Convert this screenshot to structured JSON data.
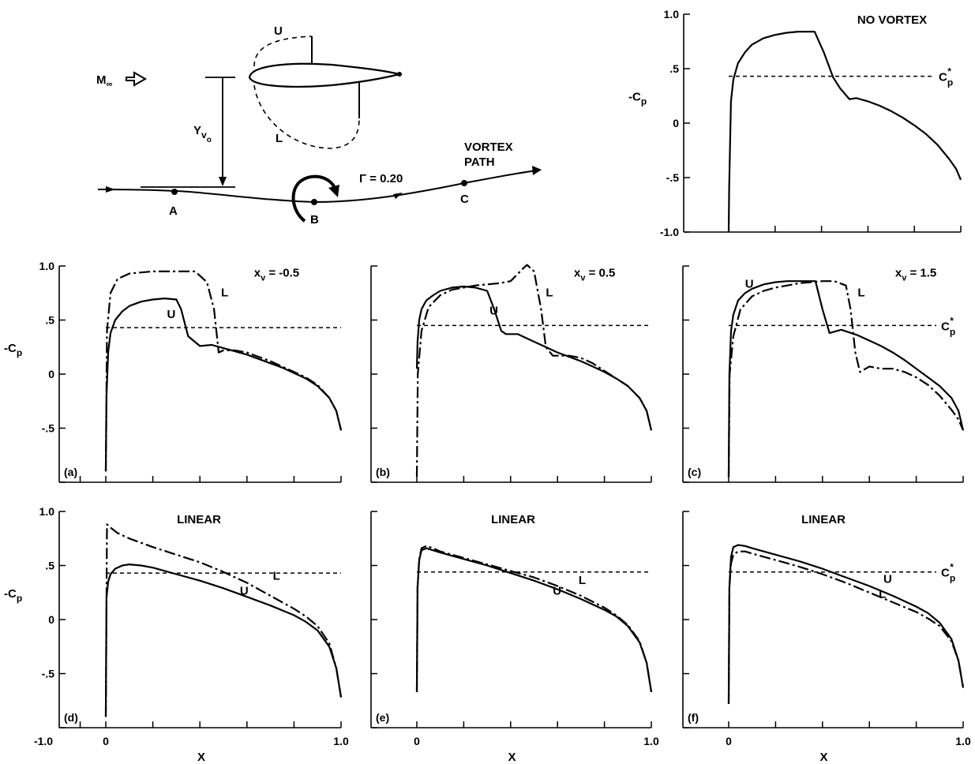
{
  "y_ticks": [
    "1.0",
    ".5",
    "0",
    "-.5",
    "-1.0"
  ],
  "x_tick_left": "-1.0",
  "x_tick_zero": "0",
  "x_tick_one": "1.0",
  "x_axis_label": "X",
  "y_axis_label_main": "-C",
  "y_axis_label_sub": "p",
  "cp_star_main": "C",
  "cp_star_sub": "p",
  "cp_star_sup": "*",
  "schematic": {
    "mach_main": "M",
    "mach_sub": "∞",
    "upper_label": "U",
    "lower_label": "L",
    "yvo_main": "Y",
    "yvo_sub": "v",
    "yvo_subsub": "o",
    "gamma_label": "Γ = 0.20",
    "vortex_path_line1": "VORTEX",
    "vortex_path_line2": "PATH",
    "point_a": "A",
    "point_b": "B",
    "point_c": "C"
  },
  "chart_data": [
    {
      "type": "line",
      "id": "no-vortex",
      "title": "NO VORTEX",
      "ylim": [
        -1.0,
        1.0
      ],
      "xlim": [
        0,
        1
      ],
      "cp_star": 0.43,
      "series": [
        {
          "name": "",
          "style": "solid",
          "x": [
            0,
            0.002,
            0.01,
            0.02,
            0.04,
            0.07,
            0.1,
            0.15,
            0.2,
            0.25,
            0.3,
            0.35,
            0.37,
            0.41,
            0.45,
            0.48,
            0.52,
            0.55,
            0.6,
            0.65,
            0.7,
            0.75,
            0.8,
            0.85,
            0.9,
            0.95,
            0.98,
            1.0
          ],
          "y": [
            -1.0,
            -0.6,
            0.2,
            0.4,
            0.55,
            0.65,
            0.72,
            0.78,
            0.81,
            0.83,
            0.84,
            0.84,
            0.84,
            0.65,
            0.42,
            0.32,
            0.22,
            0.23,
            0.2,
            0.16,
            0.11,
            0.05,
            -0.02,
            -0.1,
            -0.2,
            -0.33,
            -0.42,
            -0.52
          ]
        }
      ]
    },
    {
      "type": "line",
      "id": "a",
      "panel_label": "(a)",
      "title": "",
      "annotation_main": "x",
      "annotation_sub": "v",
      "annotation_value": " = -0.5",
      "curve_labels": {
        "upper": "U",
        "lower": "L"
      },
      "ylim": [
        -1.0,
        1.0
      ],
      "xlim": [
        -1.0,
        1.0
      ],
      "cp_star": 0.43,
      "series": [
        {
          "name": "U",
          "style": "solid",
          "x": [
            0,
            0.003,
            0.01,
            0.02,
            0.04,
            0.07,
            0.1,
            0.15,
            0.2,
            0.25,
            0.3,
            0.32,
            0.35,
            0.4,
            0.45,
            0.5,
            0.55,
            0.6,
            0.65,
            0.7,
            0.75,
            0.8,
            0.85,
            0.9,
            0.95,
            0.98,
            1.0
          ],
          "y": [
            -0.9,
            -0.2,
            0.2,
            0.38,
            0.5,
            0.58,
            0.63,
            0.67,
            0.69,
            0.7,
            0.69,
            0.6,
            0.35,
            0.26,
            0.27,
            0.24,
            0.21,
            0.18,
            0.14,
            0.1,
            0.06,
            0.01,
            -0.04,
            -0.11,
            -0.22,
            -0.34,
            -0.52
          ]
        },
        {
          "name": "L",
          "style": "dashdot",
          "x": [
            0,
            0.005,
            0.02,
            0.05,
            0.1,
            0.15,
            0.2,
            0.25,
            0.3,
            0.38,
            0.43,
            0.46,
            0.48,
            0.5,
            0.55,
            0.6,
            0.65,
            0.7,
            0.75,
            0.8,
            0.85,
            0.9,
            0.95,
            0.98,
            1.0
          ],
          "y": [
            -0.9,
            0.4,
            0.75,
            0.88,
            0.93,
            0.94,
            0.95,
            0.95,
            0.95,
            0.95,
            0.85,
            0.6,
            0.2,
            0.22,
            0.22,
            0.2,
            0.16,
            0.12,
            0.07,
            0.02,
            -0.03,
            -0.1,
            -0.22,
            -0.34,
            -0.52
          ]
        }
      ]
    },
    {
      "type": "line",
      "id": "b",
      "panel_label": "(b)",
      "title": "",
      "annotation_main": "x",
      "annotation_sub": "v",
      "annotation_value": " = 0.5",
      "curve_labels": {
        "upper": "U",
        "lower": "L"
      },
      "ylim": [
        -1.0,
        1.0
      ],
      "xlim": [
        0,
        1
      ],
      "cp_star": 0.45,
      "series": [
        {
          "name": "U",
          "style": "solid",
          "x": [
            0,
            0.003,
            0.01,
            0.02,
            0.04,
            0.07,
            0.1,
            0.15,
            0.2,
            0.25,
            0.3,
            0.33,
            0.36,
            0.38,
            0.43,
            0.48,
            0.55,
            0.6,
            0.65,
            0.7,
            0.75,
            0.8,
            0.85,
            0.9,
            0.95,
            0.98,
            1.0
          ],
          "y": [
            0.05,
            0.3,
            0.5,
            0.6,
            0.68,
            0.73,
            0.77,
            0.8,
            0.81,
            0.8,
            0.77,
            0.6,
            0.4,
            0.37,
            0.37,
            0.32,
            0.25,
            0.2,
            0.16,
            0.12,
            0.07,
            0.02,
            -0.04,
            -0.11,
            -0.22,
            -0.34,
            -0.52
          ]
        },
        {
          "name": "L",
          "style": "dashdot",
          "x": [
            0,
            0.004,
            0.02,
            0.05,
            0.1,
            0.15,
            0.2,
            0.25,
            0.3,
            0.35,
            0.4,
            0.45,
            0.47,
            0.5,
            0.53,
            0.55,
            0.58,
            0.62,
            0.65,
            0.7,
            0.75,
            0.8,
            0.85,
            0.9,
            0.95,
            0.98,
            1.0
          ],
          "y": [
            -0.95,
            0.0,
            0.4,
            0.62,
            0.73,
            0.78,
            0.8,
            0.82,
            0.83,
            0.84,
            0.86,
            0.97,
            1.01,
            0.95,
            0.6,
            0.25,
            0.17,
            0.17,
            0.17,
            0.15,
            0.1,
            0.03,
            -0.04,
            -0.11,
            -0.22,
            -0.34,
            -0.52
          ]
        }
      ]
    },
    {
      "type": "line",
      "id": "c",
      "panel_label": "(c)",
      "title": "",
      "annotation_main": "x",
      "annotation_sub": "v",
      "annotation_value": " = 1.5",
      "curve_labels": {
        "upper": "U",
        "lower": "L"
      },
      "ylim": [
        -1.0,
        1.0
      ],
      "xlim": [
        0,
        1
      ],
      "cp_star": 0.45,
      "series": [
        {
          "name": "U",
          "style": "solid",
          "x": [
            0,
            0.003,
            0.01,
            0.02,
            0.04,
            0.07,
            0.1,
            0.15,
            0.2,
            0.25,
            0.3,
            0.35,
            0.37,
            0.4,
            0.43,
            0.48,
            0.55,
            0.6,
            0.65,
            0.7,
            0.75,
            0.8,
            0.85,
            0.9,
            0.95,
            0.98,
            1.0
          ],
          "y": [
            -0.95,
            0.0,
            0.4,
            0.55,
            0.68,
            0.75,
            0.79,
            0.83,
            0.85,
            0.86,
            0.86,
            0.86,
            0.86,
            0.6,
            0.38,
            0.41,
            0.36,
            0.31,
            0.26,
            0.2,
            0.13,
            0.05,
            -0.03,
            -0.11,
            -0.22,
            -0.34,
            -0.52
          ]
        },
        {
          "name": "L",
          "style": "dashdot",
          "x": [
            0,
            0.004,
            0.02,
            0.05,
            0.1,
            0.15,
            0.2,
            0.25,
            0.3,
            0.35,
            0.4,
            0.45,
            0.5,
            0.52,
            0.54,
            0.56,
            0.6,
            0.65,
            0.7,
            0.75,
            0.8,
            0.85,
            0.9,
            0.95,
            0.98,
            1.0
          ],
          "y": [
            -0.95,
            0.0,
            0.35,
            0.6,
            0.72,
            0.77,
            0.8,
            0.82,
            0.84,
            0.85,
            0.86,
            0.86,
            0.82,
            0.6,
            0.2,
            0.02,
            0.07,
            0.05,
            0.05,
            0.02,
            -0.03,
            -0.1,
            -0.2,
            -0.33,
            -0.42,
            -0.52
          ]
        }
      ]
    },
    {
      "type": "line",
      "id": "d",
      "panel_label": "(d)",
      "title": "LINEAR",
      "curve_labels": {
        "upper": "U",
        "lower": "L"
      },
      "ylim": [
        -1.0,
        1.0
      ],
      "xlim": [
        -1.0,
        1.0
      ],
      "cp_star": 0.43,
      "series": [
        {
          "name": "U",
          "style": "solid",
          "x": [
            0,
            0.003,
            0.01,
            0.02,
            0.04,
            0.07,
            0.1,
            0.15,
            0.2,
            0.3,
            0.4,
            0.5,
            0.6,
            0.7,
            0.8,
            0.85,
            0.9,
            0.95,
            0.98,
            1.0
          ],
          "y": [
            -0.9,
            0.2,
            0.35,
            0.42,
            0.47,
            0.5,
            0.51,
            0.5,
            0.48,
            0.42,
            0.36,
            0.29,
            0.21,
            0.13,
            0.04,
            -0.02,
            -0.1,
            -0.25,
            -0.45,
            -0.72
          ]
        },
        {
          "name": "L",
          "style": "dashdot",
          "x": [
            0,
            0.005,
            0.02,
            0.05,
            0.1,
            0.15,
            0.2,
            0.3,
            0.4,
            0.5,
            0.6,
            0.7,
            0.8,
            0.85,
            0.9,
            0.95,
            0.98,
            1.0
          ],
          "y": [
            -0.9,
            0.88,
            0.85,
            0.8,
            0.75,
            0.71,
            0.67,
            0.6,
            0.53,
            0.44,
            0.34,
            0.22,
            0.1,
            0.03,
            -0.06,
            -0.22,
            -0.45,
            -0.72
          ]
        }
      ]
    },
    {
      "type": "line",
      "id": "e",
      "panel_label": "(e)",
      "title": "LINEAR",
      "curve_labels": {
        "upper": "U",
        "lower": "L"
      },
      "ylim": [
        -1.0,
        1.0
      ],
      "xlim": [
        0,
        1
      ],
      "cp_star": 0.44,
      "series": [
        {
          "name": "U",
          "style": "solid",
          "x": [
            0,
            0.003,
            0.01,
            0.02,
            0.04,
            0.07,
            0.1,
            0.2,
            0.3,
            0.4,
            0.5,
            0.6,
            0.7,
            0.8,
            0.85,
            0.9,
            0.95,
            0.98,
            1.0
          ],
          "y": [
            -0.67,
            0.3,
            0.55,
            0.64,
            0.66,
            0.64,
            0.62,
            0.56,
            0.5,
            0.43,
            0.36,
            0.28,
            0.19,
            0.09,
            0.03,
            -0.06,
            -0.21,
            -0.4,
            -0.67
          ]
        },
        {
          "name": "L",
          "style": "dashdot",
          "x": [
            0,
            0.003,
            0.01,
            0.02,
            0.04,
            0.07,
            0.1,
            0.2,
            0.3,
            0.4,
            0.5,
            0.6,
            0.7,
            0.8,
            0.85,
            0.9,
            0.95,
            0.98,
            1.0
          ],
          "y": [
            -0.67,
            0.3,
            0.56,
            0.66,
            0.68,
            0.66,
            0.63,
            0.57,
            0.51,
            0.45,
            0.39,
            0.31,
            0.22,
            0.11,
            0.04,
            -0.05,
            -0.2,
            -0.4,
            -0.67
          ]
        }
      ]
    },
    {
      "type": "line",
      "id": "f",
      "panel_label": "(f)",
      "title": "LINEAR",
      "curve_labels": {
        "upper": "U",
        "lower": "L"
      },
      "ylim": [
        -1.0,
        1.0
      ],
      "xlim": [
        0,
        1
      ],
      "cp_star": 0.44,
      "series": [
        {
          "name": "U",
          "style": "solid",
          "x": [
            0,
            0.003,
            0.01,
            0.02,
            0.04,
            0.07,
            0.1,
            0.2,
            0.3,
            0.4,
            0.5,
            0.6,
            0.7,
            0.8,
            0.85,
            0.9,
            0.95,
            0.98,
            1.0
          ],
          "y": [
            -0.78,
            0.3,
            0.58,
            0.67,
            0.69,
            0.68,
            0.66,
            0.6,
            0.54,
            0.47,
            0.39,
            0.31,
            0.22,
            0.12,
            0.06,
            -0.03,
            -0.18,
            -0.38,
            -0.63
          ]
        },
        {
          "name": "L",
          "style": "dashdot",
          "x": [
            0,
            0.003,
            0.01,
            0.02,
            0.04,
            0.07,
            0.1,
            0.2,
            0.3,
            0.4,
            0.5,
            0.6,
            0.7,
            0.8,
            0.85,
            0.9,
            0.95,
            0.98,
            1.0
          ],
          "y": [
            -0.78,
            0.3,
            0.52,
            0.6,
            0.63,
            0.63,
            0.61,
            0.55,
            0.49,
            0.42,
            0.34,
            0.25,
            0.16,
            0.07,
            0.01,
            -0.06,
            -0.2,
            -0.38,
            -0.63
          ]
        }
      ]
    }
  ]
}
